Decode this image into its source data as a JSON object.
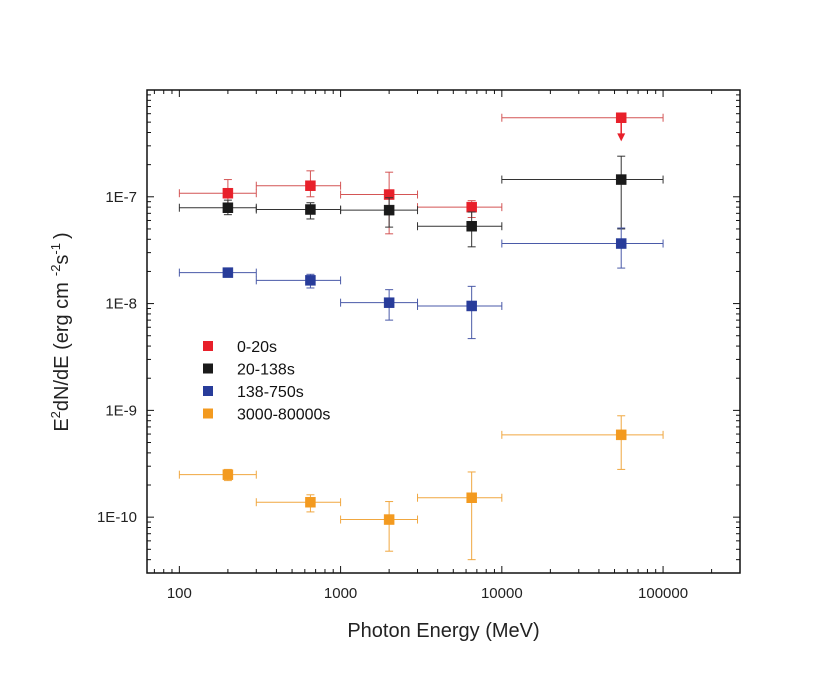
{
  "chart_data": {
    "type": "scatter",
    "title": "",
    "xlabel": "Photon Energy (MeV)",
    "ylabel": {
      "prefix": "E",
      "exp1": "2",
      "middle": "dN/dE (erg cm",
      "exp2": "-2",
      "sep": "s",
      "exp3": "-1",
      "suffix": ")"
    },
    "xscale": "log",
    "yscale": "log",
    "xlim": [
      63,
      300000
    ],
    "ylim": [
      3e-11,
      1e-06
    ],
    "xticks": [
      {
        "value": 100,
        "label": "100"
      },
      {
        "value": 1000,
        "label": "1000"
      },
      {
        "value": 10000,
        "label": "10000"
      },
      {
        "value": 100000,
        "label": "100000"
      }
    ],
    "yticks": [
      {
        "value": 1e-07,
        "label": "1E-7"
      },
      {
        "value": 1e-08,
        "label": "1E-8"
      },
      {
        "value": 1e-09,
        "label": "1E-9"
      },
      {
        "value": 1e-10,
        "label": "1E-10"
      }
    ],
    "legend_position": "center-left",
    "series": [
      {
        "name": "0-20s",
        "color": "#e8202a",
        "errcolor": "#d45555",
        "points": [
          {
            "x": 200,
            "y": 1.08e-07,
            "xlo": 100,
            "xhi": 300,
            "ylo": 8.5e-08,
            "yhi": 1.45e-07
          },
          {
            "x": 650,
            "y": 1.27e-07,
            "xlo": 300,
            "xhi": 1000,
            "ylo": 1e-07,
            "yhi": 1.75e-07
          },
          {
            "x": 2000,
            "y": 1.05e-07,
            "xlo": 1000,
            "xhi": 3000,
            "ylo": 4.5e-08,
            "yhi": 1.7e-07
          },
          {
            "x": 6500,
            "y": 8e-08,
            "xlo": 3000,
            "xhi": 10000,
            "ylo": 6.4e-08,
            "yhi": 9.2e-08
          },
          {
            "x": 55000,
            "y": 5.5e-07,
            "xlo": 10000,
            "xhi": 100000,
            "upper_limit": true,
            "arrow_to": 3.3e-07
          }
        ]
      },
      {
        "name": "20-138s",
        "color": "#1a1a1a",
        "errcolor": "#333333",
        "points": [
          {
            "x": 200,
            "y": 7.9e-08,
            "xlo": 100,
            "xhi": 300,
            "ylo": 6.8e-08,
            "yhi": 9.3e-08
          },
          {
            "x": 650,
            "y": 7.6e-08,
            "xlo": 300,
            "xhi": 1000,
            "ylo": 6.2e-08,
            "yhi": 8.8e-08
          },
          {
            "x": 2000,
            "y": 7.5e-08,
            "xlo": 1000,
            "xhi": 3000,
            "ylo": 5.2e-08,
            "yhi": 9.8e-08
          },
          {
            "x": 6500,
            "y": 5.3e-08,
            "xlo": 3000,
            "xhi": 10000,
            "ylo": 3.4e-08,
            "yhi": 7.2e-08
          },
          {
            "x": 55000,
            "y": 1.45e-07,
            "xlo": 10000,
            "xhi": 100000,
            "ylo": 5e-08,
            "yhi": 2.4e-07
          }
        ]
      },
      {
        "name": "138-750s",
        "color": "#283c9a",
        "errcolor": "#4a5aa8",
        "points": [
          {
            "x": 200,
            "y": 1.95e-08,
            "xlo": 100,
            "xhi": 300
          },
          {
            "x": 650,
            "y": 1.65e-08,
            "xlo": 300,
            "xhi": 1000,
            "ylo": 1.4e-08,
            "yhi": 1.88e-08
          },
          {
            "x": 2000,
            "y": 1.02e-08,
            "xlo": 1000,
            "xhi": 3000,
            "ylo": 7e-09,
            "yhi": 1.35e-08
          },
          {
            "x": 6500,
            "y": 9.5e-09,
            "xlo": 3000,
            "xhi": 10000,
            "ylo": 4.7e-09,
            "yhi": 1.45e-08
          },
          {
            "x": 55000,
            "y": 3.65e-08,
            "xlo": 10000,
            "xhi": 100000,
            "ylo": 2.15e-08,
            "yhi": 5.1e-08
          }
        ]
      },
      {
        "name": "3000-80000s",
        "color": "#f39a1f",
        "errcolor": "#f0a740",
        "points": [
          {
            "x": 200,
            "y": 2.5e-10,
            "xlo": 100,
            "xhi": 300,
            "ylo": 2.2e-10,
            "yhi": 2.8e-10
          },
          {
            "x": 650,
            "y": 1.38e-10,
            "xlo": 300,
            "xhi": 1000,
            "ylo": 1.12e-10,
            "yhi": 1.62e-10
          },
          {
            "x": 2000,
            "y": 9.5e-11,
            "xlo": 1000,
            "xhi": 3000,
            "ylo": 4.8e-11,
            "yhi": 1.4e-10
          },
          {
            "x": 6500,
            "y": 1.52e-10,
            "xlo": 3000,
            "xhi": 10000,
            "ylo": 4e-11,
            "yhi": 2.65e-10
          },
          {
            "x": 55000,
            "y": 5.9e-10,
            "xlo": 10000,
            "xhi": 100000,
            "ylo": 2.8e-10,
            "yhi": 8.9e-10
          }
        ]
      }
    ]
  }
}
